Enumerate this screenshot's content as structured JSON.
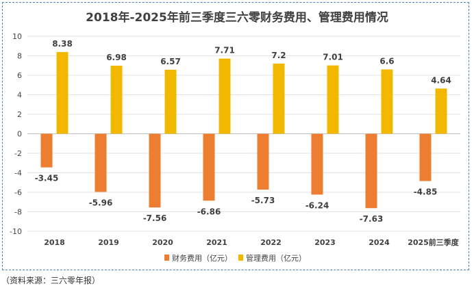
{
  "chart_data": {
    "type": "bar",
    "title": "2018年-2025年前三季度三六零财务费用、管理费用情况",
    "categories": [
      "2018",
      "2019",
      "2020",
      "2021",
      "2022",
      "2023",
      "2024",
      "2025前三季度"
    ],
    "series": [
      {
        "name": "财务费用（亿元）",
        "color": "#ed7d31",
        "values": [
          -3.45,
          -5.96,
          -7.56,
          -6.86,
          -5.73,
          -6.24,
          -7.63,
          -4.85
        ]
      },
      {
        "name": "管理费用（亿元）",
        "color": "#f2b800",
        "values": [
          8.38,
          6.98,
          6.57,
          7.71,
          7.2,
          7.01,
          6.6,
          4.64
        ]
      }
    ],
    "ylim": [
      -10,
      10
    ],
    "yticks": [
      10,
      8,
      6,
      4,
      2,
      0,
      -2,
      -4,
      -6,
      -8,
      -10
    ],
    "xlabel": "",
    "ylabel": "",
    "grid": true,
    "legend": "bottom"
  },
  "source_note": "（资料来源：三六零年报）"
}
